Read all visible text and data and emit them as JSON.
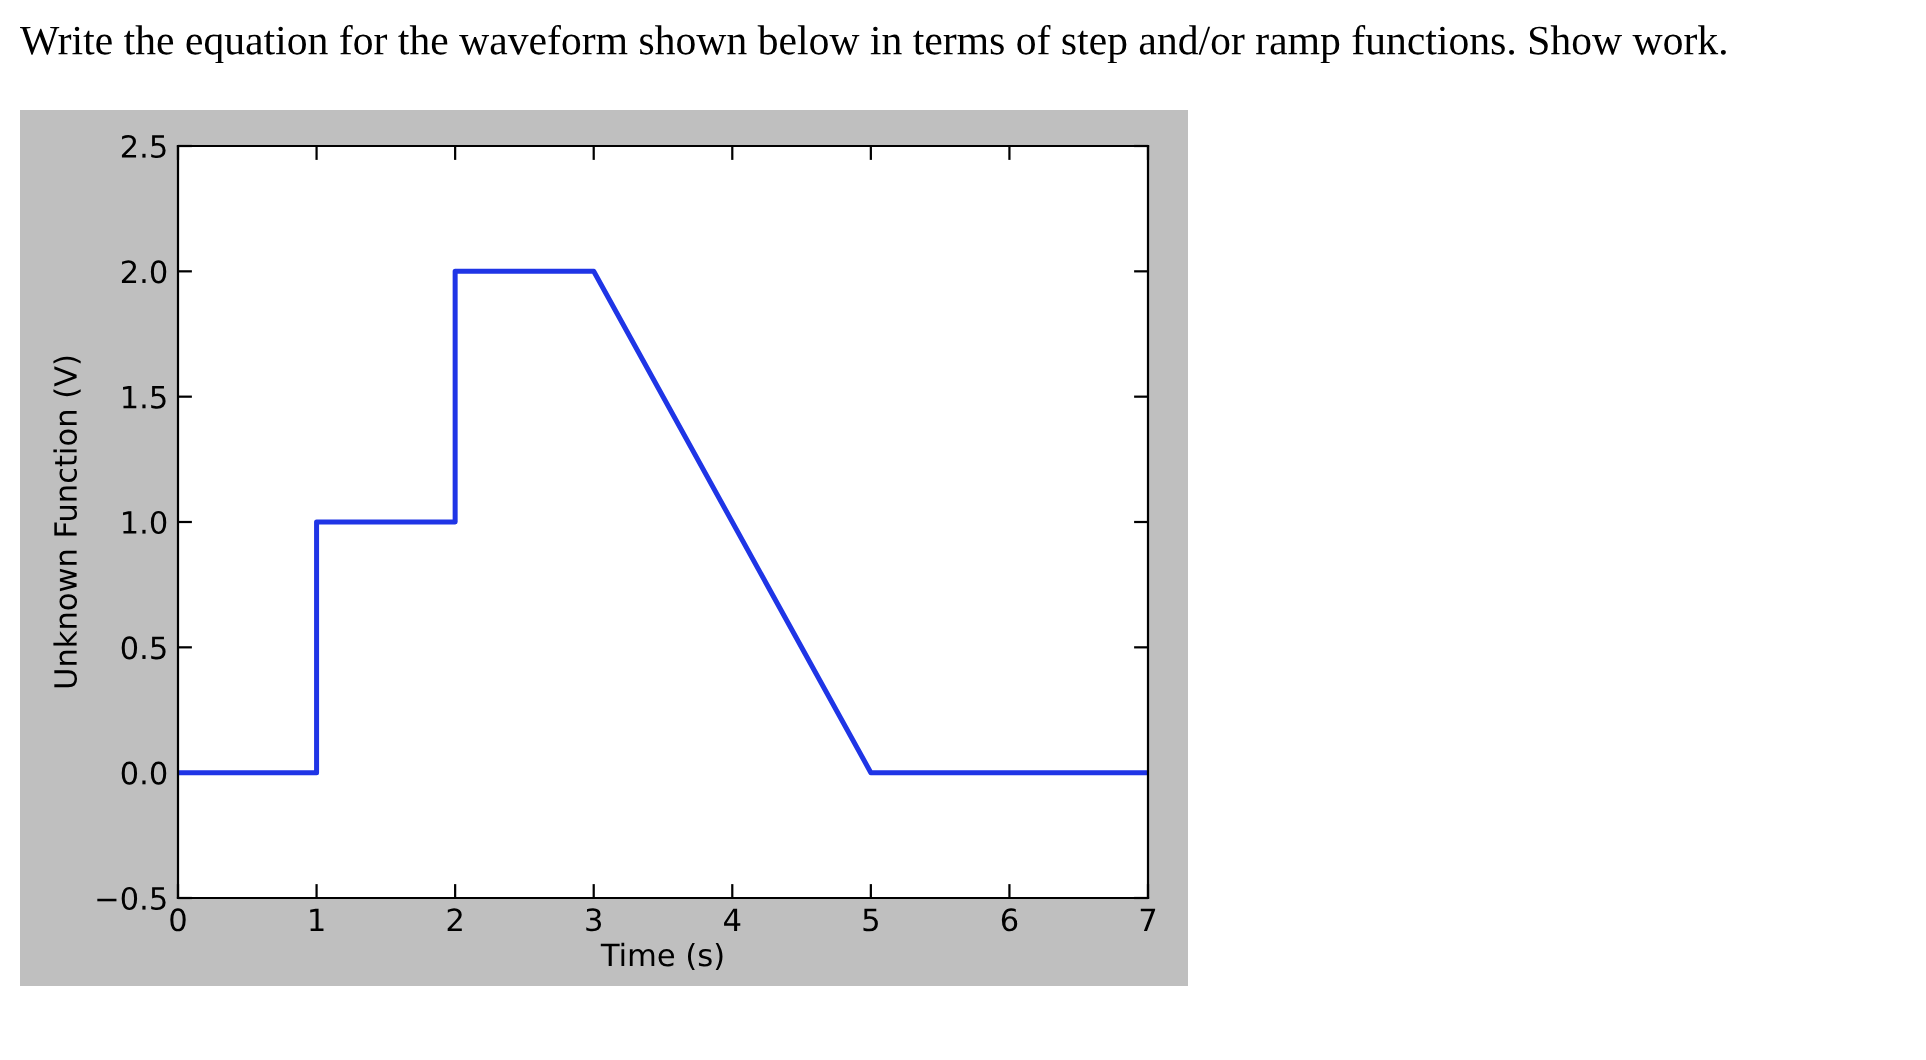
{
  "chart_data": {
    "type": "line",
    "title": "Write the equation for the waveform shown below in terms of step and/or ramp functions. Show work.",
    "xlabel": "Time (s)",
    "ylabel": "Unknown Function (V)",
    "series": [
      {
        "color": "#1f35e6",
        "x": [
          0,
          1,
          1,
          2,
          2,
          3,
          5,
          7
        ],
        "values": [
          0,
          0,
          1,
          1,
          2,
          2,
          0,
          0
        ]
      }
    ],
    "xlim": [
      0,
      7
    ],
    "xticks": [
      0,
      1,
      2,
      3,
      4,
      5,
      6,
      7
    ],
    "ylim": [
      -0.5,
      2.5
    ],
    "yticks": [
      {
        "value": -0.5,
        "label": "−0.5"
      },
      {
        "value": 0,
        "label": "0.0"
      },
      0.5,
      {
        "value": 1,
        "label": "1.0"
      },
      1.5,
      {
        "value": 2,
        "label": "2.0"
      },
      2.5
    ],
    "grid": false,
    "marker": "none",
    "line_style": "solid"
  }
}
